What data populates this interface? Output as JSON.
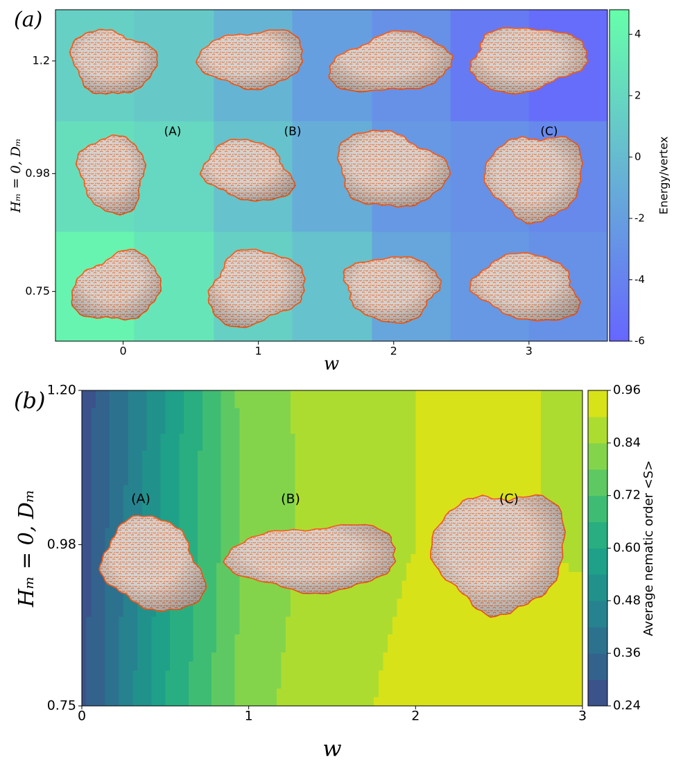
{
  "chart_data": [
    {
      "type": "heatmap",
      "panel_label": "(a)",
      "x_label": "w",
      "y_label": "Hₘ = 0, Dₘ",
      "x_edges": [
        -0.5,
        0.08,
        0.67,
        1.25,
        1.84,
        2.42,
        3.0,
        3.58
      ],
      "y_edges": [
        0.653,
        0.867,
        1.083,
        1.3
      ],
      "z": [
        [
          4,
          3,
          1.5,
          0.5,
          -1.5,
          -2.5,
          -3
        ],
        [
          2.5,
          2,
          0.5,
          -1,
          -2.5,
          -3,
          -3.5
        ],
        [
          1.5,
          1,
          -0.5,
          -2,
          -3,
          -4.5,
          -5.5
        ]
      ],
      "xlim": [
        -0.5,
        3.58
      ],
      "ylim": [
        0.653,
        1.3
      ],
      "xticks": [
        0,
        1,
        2,
        3
      ],
      "yticks": [
        0.75,
        0.98,
        1.2
      ],
      "colormap": [
        "#6666ff",
        "#66ffaa"
      ],
      "zlim": [
        -6,
        4.8
      ],
      "colorbar_ticks": [
        -6,
        -4,
        -2,
        0,
        2,
        4
      ],
      "colorbar_label": "Energy/vertex",
      "annotations": [
        "(A)",
        "(B)",
        "(C)"
      ]
    },
    {
      "type": "contour",
      "panel_label": "(b)",
      "x_label": "w",
      "y_label": "Hₘ = 0, Dₘ",
      "x": [
        0,
        0.5,
        1,
        1.5,
        2,
        2.5,
        3
      ],
      "y": [
        0.75,
        0.98,
        1.2
      ],
      "z": [
        [
          0.28,
          0.6,
          0.82,
          0.88,
          0.92,
          0.97,
          0.98
        ],
        [
          0.27,
          0.57,
          0.8,
          0.87,
          0.9,
          0.92,
          0.88
        ],
        [
          0.26,
          0.54,
          0.82,
          0.86,
          0.9,
          0.9,
          0.9
        ]
      ],
      "xlim": [
        0,
        3
      ],
      "ylim": [
        0.75,
        1.2
      ],
      "xticks": [
        0,
        1,
        2,
        3
      ],
      "yticks": [
        0.75,
        0.98,
        {
          "value": 1.2,
          "label": "1.20"
        }
      ],
      "levels": [
        0.24,
        0.3,
        0.36,
        0.42,
        0.48,
        0.54,
        0.6,
        0.66,
        0.72,
        0.78,
        0.84,
        0.9,
        0.96
      ],
      "level_colors": [
        "#3b528b",
        "#33638d",
        "#2c728e",
        "#26828e",
        "#21918c",
        "#1fa088",
        "#28ae80",
        "#3fbc73",
        "#5ec962",
        "#84d44b",
        "#addc30",
        "#d8e219"
      ],
      "colorbar_ticks": [
        0.24,
        0.36,
        0.48,
        {
          "value": 0.6,
          "label": "0.60"
        },
        0.72,
        0.84,
        0.96
      ],
      "colorbar_label": "Average nematic order <S>",
      "annotations": [
        "(A)",
        "(B)",
        "(C)"
      ]
    }
  ]
}
